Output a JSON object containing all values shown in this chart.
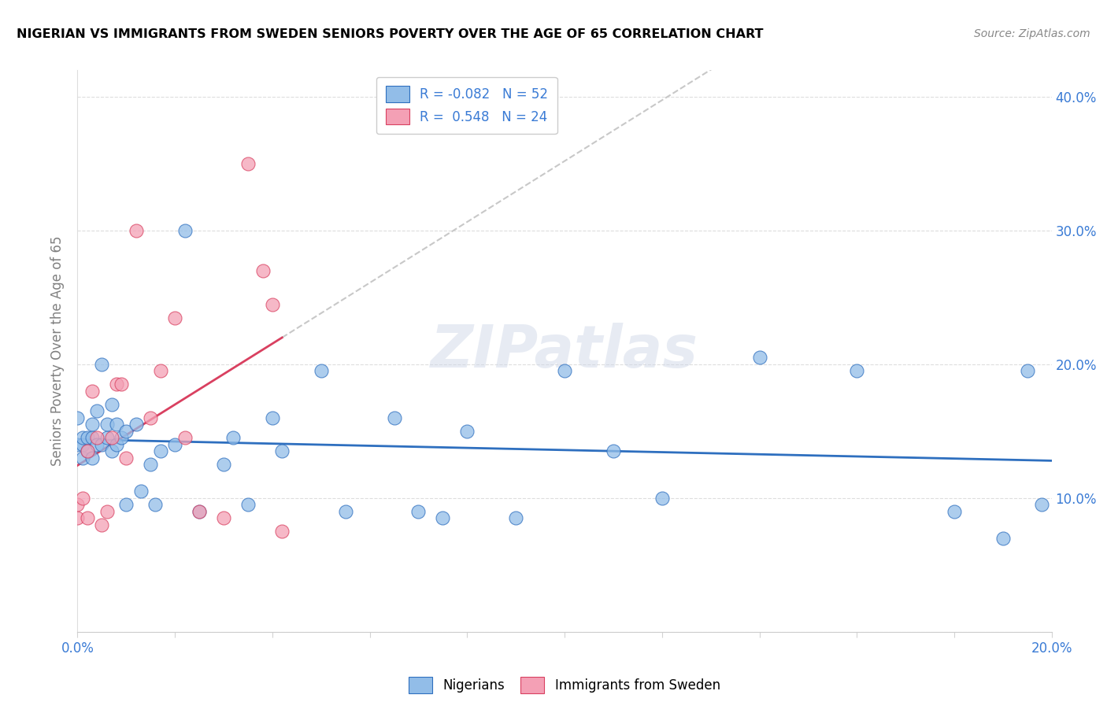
{
  "title": "NIGERIAN VS IMMIGRANTS FROM SWEDEN SENIORS POVERTY OVER THE AGE OF 65 CORRELATION CHART",
  "source": "Source: ZipAtlas.com",
  "ylabel": "Seniors Poverty Over the Age of 65",
  "xlim": [
    0.0,
    0.2
  ],
  "ylim": [
    0.0,
    0.42
  ],
  "color_blue": "#92BDE8",
  "color_pink": "#F4A0B5",
  "line_blue": "#2E6FBF",
  "line_pink": "#D94060",
  "line_dash_color": "#C8C8C8",
  "watermark_text": "ZIPatlas",
  "nigerians_x": [
    0.0,
    0.0,
    0.001,
    0.001,
    0.001,
    0.002,
    0.002,
    0.003,
    0.003,
    0.003,
    0.004,
    0.004,
    0.005,
    0.005,
    0.006,
    0.006,
    0.007,
    0.007,
    0.008,
    0.008,
    0.009,
    0.01,
    0.01,
    0.012,
    0.013,
    0.015,
    0.016,
    0.017,
    0.02,
    0.022,
    0.025,
    0.03,
    0.032,
    0.035,
    0.04,
    0.042,
    0.05,
    0.055,
    0.065,
    0.07,
    0.075,
    0.08,
    0.09,
    0.1,
    0.11,
    0.12,
    0.14,
    0.16,
    0.18,
    0.19,
    0.195,
    0.198
  ],
  "nigerians_y": [
    0.14,
    0.16,
    0.14,
    0.13,
    0.145,
    0.145,
    0.135,
    0.145,
    0.13,
    0.155,
    0.14,
    0.165,
    0.14,
    0.2,
    0.145,
    0.155,
    0.17,
    0.135,
    0.155,
    0.14,
    0.145,
    0.15,
    0.095,
    0.155,
    0.105,
    0.125,
    0.095,
    0.135,
    0.14,
    0.3,
    0.09,
    0.125,
    0.145,
    0.095,
    0.16,
    0.135,
    0.195,
    0.09,
    0.16,
    0.09,
    0.085,
    0.15,
    0.085,
    0.195,
    0.135,
    0.1,
    0.205,
    0.195,
    0.09,
    0.07,
    0.195,
    0.095
  ],
  "sweden_x": [
    0.0,
    0.0,
    0.001,
    0.002,
    0.002,
    0.003,
    0.004,
    0.005,
    0.006,
    0.007,
    0.008,
    0.009,
    0.01,
    0.012,
    0.015,
    0.017,
    0.02,
    0.022,
    0.025,
    0.03,
    0.035,
    0.038,
    0.04,
    0.042
  ],
  "sweden_y": [
    0.085,
    0.095,
    0.1,
    0.135,
    0.085,
    0.18,
    0.145,
    0.08,
    0.09,
    0.145,
    0.185,
    0.185,
    0.13,
    0.3,
    0.16,
    0.195,
    0.235,
    0.145,
    0.09,
    0.085,
    0.35,
    0.27,
    0.245,
    0.075
  ]
}
